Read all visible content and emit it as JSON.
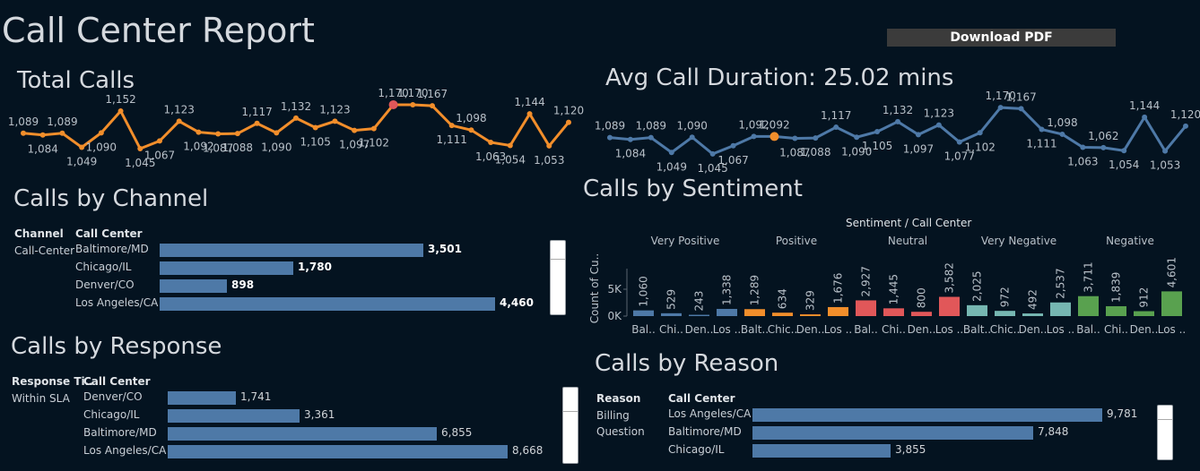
{
  "header": {
    "title": "Call Center Report",
    "download_label": "Download PDF"
  },
  "total_calls": {
    "title": "Total Calls",
    "chart_data": {
      "type": "line",
      "values": [
        1089,
        1084,
        1089,
        1049,
        1090,
        1152,
        1045,
        1067,
        1123,
        1092,
        1087,
        1088,
        1117,
        1090,
        1132,
        1105,
        1123,
        1097,
        1102,
        1170,
        1170,
        1167,
        1111,
        1098,
        1063,
        1054,
        1144,
        1053,
        1120
      ],
      "labels": [
        "1,089",
        "1,084",
        "1,089",
        "1,049",
        "1,090",
        "1,152",
        "1,045",
        "1,067",
        "1,123",
        "1,092",
        "1,087",
        "1,088",
        "1,117",
        "1,090",
        "1,132",
        "1,105",
        "1,123",
        "1,097",
        "1,102",
        "1,170",
        "1,170",
        "1,167",
        "1,111",
        "1,098",
        "1,063",
        "1,054",
        "1,144",
        "1,053",
        "1,120"
      ],
      "color": "#f28e2b",
      "highlight_color": "#e15759"
    }
  },
  "avg_duration": {
    "title": "Avg Call Duration: 25.02 mins",
    "chart_data": {
      "type": "line",
      "values": [
        1089,
        1084,
        1089,
        1049,
        1090,
        1045,
        1067,
        1092,
        1092,
        1087,
        1088,
        1117,
        1090,
        1105,
        1132,
        1097,
        1123,
        1077,
        1102,
        1170,
        1167,
        1111,
        1098,
        1063,
        1062,
        1054,
        1144,
        1053,
        1120
      ],
      "labels": [
        "1,089",
        "1,084",
        "1,089",
        "1,049",
        "1,090",
        "1,045",
        "1,067",
        "1,092",
        "1,092",
        "1,087",
        "1,088",
        "1,117",
        "1,090",
        "1,105",
        "1,132",
        "1,097",
        "1,123",
        "1,077",
        "1,102",
        "1,170",
        "1,167",
        "1,111",
        "1,098",
        "1,063",
        "1,062",
        "1,054",
        "1,144",
        "1,053",
        "1,120"
      ],
      "color": "#4e79a7",
      "highlight_color": "#f28e2b"
    }
  },
  "channel": {
    "title": "Calls by Channel",
    "col1": "Channel",
    "col2": "Call Center",
    "group": "Call-Center",
    "chart_data": {
      "type": "bar",
      "categories": [
        "Baltimore/MD",
        "Chicago/IL",
        "Denver/CO",
        "Los Angeles/CA"
      ],
      "values": [
        3501,
        1780,
        898,
        4460
      ],
      "labels": [
        "3,501",
        "1,780",
        "898",
        "4,460"
      ]
    }
  },
  "response": {
    "title": "Calls by Response",
    "col1": "Response Ti..",
    "col2": "Call Center",
    "group": "Within SLA",
    "chart_data": {
      "type": "bar",
      "categories": [
        "Denver/CO",
        "Chicago/IL",
        "Baltimore/MD",
        "Los Angeles/CA"
      ],
      "values": [
        1741,
        3361,
        6855,
        8668
      ],
      "labels": [
        "1,741",
        "3,361",
        "6,855",
        "8,668"
      ]
    }
  },
  "sentiment": {
    "title": "Calls by Sentiment",
    "header": "Sentiment  /  Call Center",
    "yaxis": "Count of Cu..",
    "ticks": [
      "5K",
      "0K"
    ],
    "groups": [
      "Very Positive",
      "Positive",
      "Neutral",
      "Very Negative",
      "Negative"
    ],
    "chart_data": {
      "type": "bar",
      "categories": [
        "Bal..",
        "Chi..",
        "Den..",
        "Los ..",
        "Balt..",
        "Chic..",
        "Den..",
        "Los ..",
        "Bal..",
        "Chi..",
        "Den..",
        "Los ..",
        "Balt..",
        "Chic..",
        "Den..",
        "Los ..",
        "Bal..",
        "Chi..",
        "Den..",
        "Los .."
      ],
      "values": [
        1060,
        529,
        243,
        1338,
        1289,
        634,
        329,
        1676,
        2927,
        1445,
        800,
        3582,
        2025,
        972,
        492,
        2537,
        3711,
        1839,
        912,
        4601
      ],
      "labels": [
        "1,060",
        "529",
        "243",
        "1,338",
        "1,289",
        "634",
        "329",
        "1,676",
        "2,927",
        "1,445",
        "800",
        "3,582",
        "2,025",
        "972",
        "492",
        "2,537",
        "3,711",
        "1,839",
        "912",
        "4,601"
      ],
      "group_colors": [
        "#4e79a7",
        "#f28e2b",
        "#e15759",
        "#76b7b2",
        "#59a14f"
      ],
      "ylim": [
        0,
        6000
      ]
    }
  },
  "reason": {
    "title": "Calls by Reason",
    "col1": "Reason",
    "col2": "Call Center",
    "group_line1": "Billing",
    "group_line2": "Question",
    "chart_data": {
      "type": "bar",
      "categories": [
        "Los Angeles/CA",
        "Baltimore/MD",
        "Chicago/IL"
      ],
      "values": [
        9781,
        7848,
        3855
      ],
      "labels": [
        "9,781",
        "7,848",
        "3,855"
      ]
    }
  }
}
